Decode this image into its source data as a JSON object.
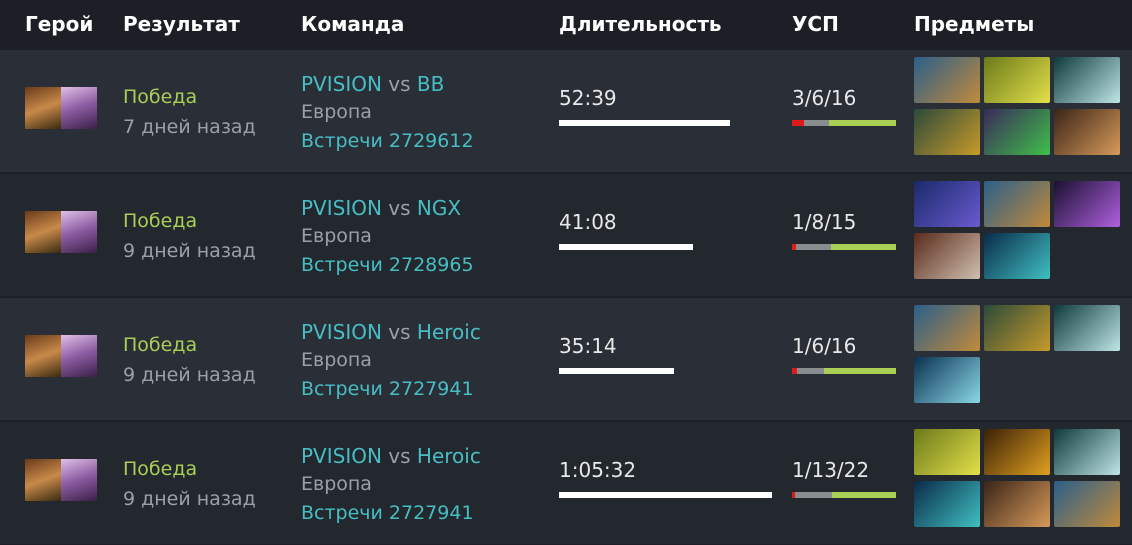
{
  "header": {
    "columns": [
      "Герой",
      "Результат",
      "Команда",
      "Длительность",
      "УСП",
      "Предметы"
    ]
  },
  "matches": [
    {
      "result": "Победа",
      "time_ago": "7 дней назад",
      "team": "PVISION",
      "vs": "vs",
      "opponent": "BB",
      "region": "Европа",
      "series": "Встречи 2729612",
      "duration": {
        "label": "52:39",
        "seconds": 3159
      },
      "kda": {
        "label": "3/6/16",
        "values": [
          3,
          6,
          16
        ]
      }
    },
    {
      "result": "Победа",
      "time_ago": "9 дней назад",
      "team": "PVISION",
      "vs": "vs",
      "opponent": "NGX",
      "region": "Европа",
      "series": "Встречи 2728965",
      "duration": {
        "label": "41:08",
        "seconds": 2468
      },
      "kda": {
        "label": "1/8/15",
        "values": [
          1,
          8,
          15
        ]
      }
    },
    {
      "result": "Победа",
      "time_ago": "9 дней назад",
      "team": "PVISION",
      "vs": "vs",
      "opponent": "Heroic",
      "region": "Европа",
      "series": "Встречи 2727941",
      "duration": {
        "label": "35:14",
        "seconds": 2114
      },
      "kda": {
        "label": "1/6/16",
        "values": [
          1,
          6,
          16
        ]
      }
    },
    {
      "result": "Победа",
      "time_ago": "9 дней назад",
      "team": "PVISION",
      "vs": "vs",
      "opponent": "Heroic",
      "region": "Европа",
      "series": "Встречи 2727941",
      "duration": {
        "label": "1:05:32",
        "seconds": 3932
      },
      "kda": {
        "label": "1/13/22",
        "values": [
          1,
          13,
          22
        ]
      }
    }
  ]
}
